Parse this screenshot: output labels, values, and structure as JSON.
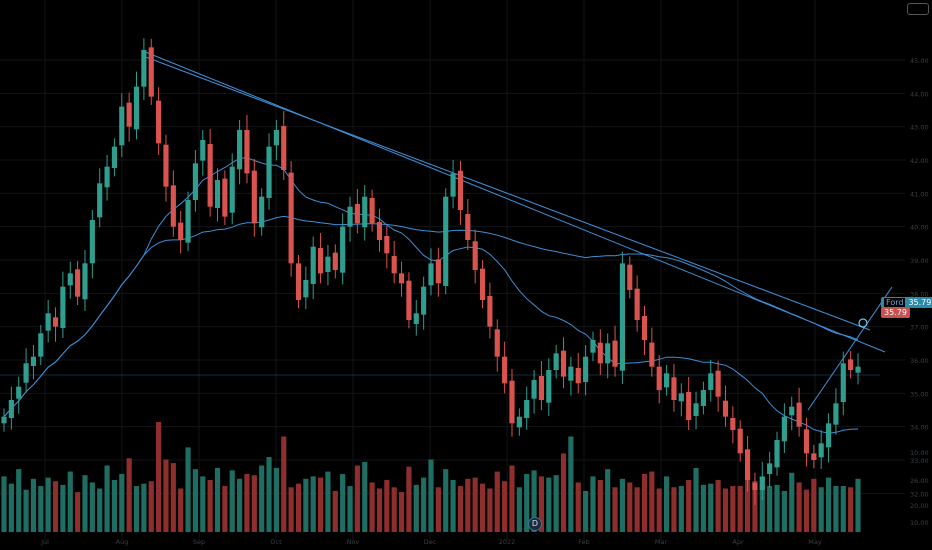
{
  "chart_data": {
    "type": "candlestick",
    "colors": {
      "up": "#2f9e8f",
      "down": "#d9534f",
      "vol_up": "#1f6e63",
      "vol_down": "#8e2f2d",
      "trend": "#3d8fd6",
      "grid": "#101418"
    },
    "y_price_range": [
      31.8,
      46.2
    ],
    "price_ticks": [
      "45.00",
      "44.00",
      "43.00",
      "42.00",
      "41.00",
      "40.00",
      "39.00",
      "38.00",
      "37.00",
      "36.00",
      "35.00",
      "34.00",
      "33.00",
      "32.00"
    ],
    "vol_ticks": [
      "10.00",
      "26.00",
      "20.00",
      "10.00"
    ],
    "x_labels": [
      "Jul",
      "Aug",
      "Sep",
      "Oct",
      "Nov",
      "Dec",
      "2022",
      "Feb",
      "Mar",
      "Apr",
      "May"
    ],
    "last_price": "35.79",
    "last_price_label": "Ford",
    "prev_price_label": "35.79",
    "event_badge": "D",
    "closes": [
      34.3,
      34.8,
      35.2,
      35.9,
      36.1,
      36.8,
      37.4,
      37.0,
      38.2,
      38.6,
      37.9,
      38.9,
      40.2,
      41.3,
      41.8,
      42.4,
      43.6,
      43.0,
      44.2,
      45.3,
      43.9,
      42.5,
      41.2,
      40.0,
      39.6,
      40.8,
      41.9,
      42.6,
      40.6,
      41.4,
      40.3,
      41.8,
      42.9,
      41.6,
      40.1,
      40.9,
      42.4,
      42.9,
      41.7,
      38.9,
      37.8,
      38.4,
      39.4,
      38.6,
      39.1,
      38.7,
      40.0,
      40.6,
      40.1,
      40.9,
      40.1,
      39.6,
      39.2,
      38.6,
      38.3,
      37.2,
      37.4,
      38.2,
      38.9,
      38.3,
      40.9,
      41.6,
      40.5,
      39.6,
      38.7,
      37.8,
      37.0,
      36.1,
      35.3,
      34.1,
      34.3,
      34.8,
      35.4,
      34.8,
      35.7,
      36.2,
      35.5,
      35.8,
      35.3,
      36.1,
      36.6,
      35.9,
      36.5,
      35.8,
      38.9,
      38.1,
      37.2,
      36.6,
      35.8,
      35.1,
      35.6,
      34.8,
      35.0,
      34.2,
      34.7,
      35.1,
      35.6,
      34.9,
      34.3,
      33.9,
      33.2,
      32.4,
      32.1,
      32.5,
      32.9,
      33.6,
      34.3,
      34.6,
      34.0,
      33.2,
      33.0,
      33.5,
      34.1,
      34.7,
      35.9,
      35.7,
      35.8
    ],
    "volumes": [
      46,
      40,
      52,
      35,
      44,
      38,
      45,
      42,
      39,
      50,
      33,
      47,
      41,
      36,
      55,
      43,
      48,
      61,
      38,
      40,
      42,
      91,
      60,
      57,
      36,
      70,
      52,
      46,
      43,
      53,
      38,
      51,
      44,
      48,
      47,
      55,
      62,
      53,
      79,
      37,
      40,
      44,
      46,
      45,
      50,
      34,
      48,
      38,
      55,
      58,
      41,
      36,
      43,
      37,
      33,
      54,
      39,
      45,
      60,
      37,
      52,
      43,
      38,
      44,
      45,
      40,
      36,
      50,
      42,
      55,
      37,
      48,
      51,
      46,
      45,
      47,
      65,
      79,
      41,
      34,
      46,
      43,
      52,
      37,
      44,
      41,
      37,
      48,
      50,
      36,
      46,
      37,
      38,
      43,
      53,
      39,
      40,
      43,
      36,
      38,
      38,
      49,
      42,
      46,
      38,
      39,
      34,
      49,
      41,
      35,
      44,
      37,
      45,
      38,
      38,
      37,
      44
    ]
  }
}
